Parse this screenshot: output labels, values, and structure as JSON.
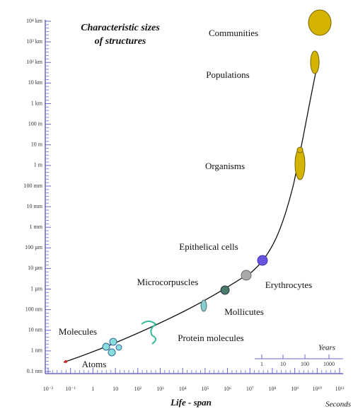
{
  "title": [
    "Characteristic sizes",
    "of structures"
  ],
  "size_axis": {
    "labels": [
      "10⁴ km",
      "10³ km",
      "10² km",
      "10 km",
      "1 km",
      "100 m",
      "10 m",
      "1 m",
      "100 mm",
      "10 mm",
      "1 mm",
      "100 µm",
      "10 µm",
      "1 µm",
      "100 nm",
      "10 nm",
      "1 nm",
      "0.1 nm"
    ]
  },
  "time_axis": {
    "title": "Life - span",
    "unit": "Seconds",
    "labels": [
      "10⁻²",
      "10⁻¹",
      "1",
      "10",
      "10²",
      "10³",
      "10⁴",
      "10⁵",
      "10⁶",
      "10⁷",
      "10⁸",
      "10⁹",
      "10¹⁰",
      "10¹¹"
    ]
  },
  "years_axis": {
    "title": "Years",
    "labels": [
      "1",
      "10",
      "100",
      "1000"
    ]
  },
  "structures": [
    {
      "label": "Communities"
    },
    {
      "label": "Populations"
    },
    {
      "label": "Organisms"
    },
    {
      "label": "Epithelical cells"
    },
    {
      "label": "Erythrocytes"
    },
    {
      "label": "Microcorpuscles"
    },
    {
      "label": "Mollicutes"
    },
    {
      "label": "Protein molecules"
    },
    {
      "label": "Molecules"
    },
    {
      "label": "Atoms"
    }
  ]
}
